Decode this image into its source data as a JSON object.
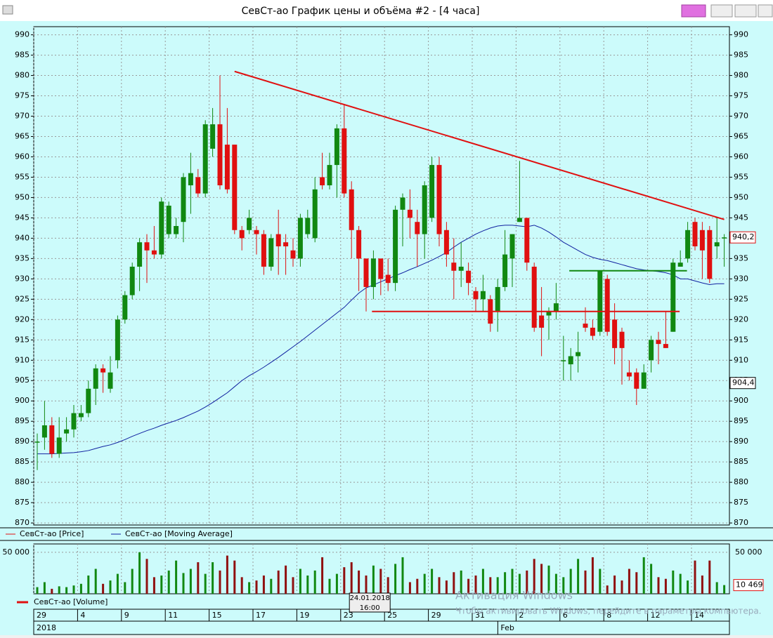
{
  "chart_data": {
    "type": "candlestick",
    "title": "СевСт-ао График цены и объёма #2 - [4 часа]",
    "colors": {
      "up": "#118811",
      "down": "#e01010",
      "ma": "#1020a0",
      "background": "#ccfbfb"
    },
    "open": [
      890,
      891,
      894,
      887,
      892,
      893,
      896,
      897,
      903,
      908,
      903,
      910,
      920,
      926,
      933,
      939,
      937,
      936,
      941,
      941,
      944,
      953,
      955,
      951,
      962,
      968,
      963,
      963,
      942,
      942,
      942,
      941,
      933,
      941,
      939,
      937,
      935,
      941,
      940,
      955,
      953,
      958,
      967,
      952,
      942,
      935,
      928,
      935,
      931,
      929,
      947,
      947,
      944,
      941,
      945,
      958,
      942,
      934,
      932,
      932,
      927,
      925,
      925,
      922,
      928,
      935,
      944,
      945,
      933,
      921,
      921,
      922,
      910,
      909,
      911,
      919,
      918,
      917,
      930,
      920,
      917,
      907,
      907,
      903,
      910,
      915,
      914,
      917,
      933,
      935,
      944,
      942,
      942,
      938,
      940
    ],
    "high": [
      892,
      900,
      896,
      896,
      896,
      899,
      899,
      905,
      909,
      909,
      911,
      921,
      927,
      934,
      940,
      941,
      943,
      950,
      949,
      945,
      956,
      961,
      957,
      969,
      972,
      980,
      972,
      963,
      943,
      947,
      943,
      942,
      941,
      947,
      941,
      940,
      946,
      947,
      955,
      961,
      961,
      968,
      973,
      954,
      943,
      935,
      937,
      935,
      935,
      948,
      951,
      952,
      947,
      954,
      960,
      960,
      944,
      940,
      939,
      934,
      928,
      931,
      926,
      930,
      942,
      941,
      959,
      945,
      934,
      928,
      923,
      929,
      916,
      913,
      917,
      923,
      920,
      932,
      931,
      924,
      918,
      910,
      908,
      909,
      916,
      917,
      922,
      935,
      937,
      944,
      945,
      944,
      943,
      945,
      941
    ],
    "low": [
      883,
      888,
      886,
      886,
      890,
      891,
      895,
      896,
      899,
      902,
      902,
      908,
      919,
      925,
      927,
      929,
      935,
      935,
      940,
      940,
      939,
      946,
      950,
      950,
      960,
      952,
      951,
      941,
      937,
      941,
      936,
      931,
      932,
      931,
      931,
      933,
      933,
      940,
      939,
      952,
      952,
      950,
      950,
      935,
      927,
      922,
      925,
      926,
      927,
      927,
      938,
      940,
      933,
      935,
      944,
      938,
      933,
      925,
      928,
      926,
      922,
      922,
      917,
      917,
      927,
      928,
      944,
      932,
      917,
      911,
      915,
      920,
      905,
      905,
      907,
      917,
      915,
      916,
      916,
      909,
      904,
      905,
      899,
      903,
      907,
      909,
      913,
      917,
      933,
      934,
      937,
      930,
      929,
      935,
      933
    ],
    "close": [
      890,
      894,
      887,
      891,
      893,
      897,
      897,
      903,
      908,
      907,
      907,
      920,
      926,
      933,
      939,
      937,
      936,
      949,
      948,
      943,
      955,
      956,
      951,
      968,
      968,
      953,
      952,
      942,
      940,
      945,
      941,
      933,
      940,
      938,
      938,
      935,
      945,
      945,
      952,
      953,
      958,
      967,
      951,
      942,
      935,
      928,
      935,
      930,
      929,
      947,
      950,
      945,
      941,
      953,
      958,
      941,
      936,
      932,
      933,
      929,
      925,
      927,
      919,
      928,
      936,
      941,
      945,
      934,
      918,
      918,
      922,
      924,
      910,
      911,
      912,
      918,
      916,
      932,
      917,
      913,
      913,
      906,
      903,
      907,
      915,
      914,
      913,
      934,
      934,
      942,
      938,
      937,
      930,
      939,
      940.2
    ],
    "ma": [
      887,
      887,
      887,
      887.1,
      887.2,
      887.3,
      887.5,
      887.8,
      888.3,
      888.8,
      889.2,
      889.8,
      890.5,
      891.3,
      892,
      892.7,
      893.3,
      894,
      894.6,
      895.2,
      895.9,
      896.7,
      897.5,
      898.5,
      899.6,
      900.8,
      902,
      903.5,
      905,
      906.2,
      907.2,
      908.3,
      909.5,
      910.7,
      912,
      913.3,
      914.6,
      916,
      917.4,
      918.8,
      920.2,
      921.6,
      923,
      924.8,
      926.5,
      927.8,
      928.5,
      929.3,
      930,
      930.8,
      931.5,
      932.3,
      933,
      933.8,
      934.6,
      935.5,
      936.5,
      937.8,
      939,
      940,
      941,
      941.8,
      942.5,
      943,
      943.2,
      943.2,
      943,
      942.8,
      943.2,
      942.5,
      941.5,
      940.3,
      939,
      938,
      937,
      936,
      935.3,
      934.8,
      934.5,
      934,
      933.5,
      933,
      932.5,
      932.2,
      932,
      931.8,
      931.5,
      931,
      930,
      930,
      929.5,
      929,
      928.6,
      928.8,
      928.8
    ],
    "volume": [
      8000,
      14000,
      6000,
      9000,
      8000,
      10000,
      12000,
      22000,
      30000,
      12000,
      16000,
      24000,
      14000,
      30000,
      50000,
      42000,
      20000,
      22000,
      28000,
      40000,
      25000,
      30000,
      38000,
      24000,
      38000,
      28000,
      46000,
      40000,
      20000,
      14000,
      16000,
      22000,
      18000,
      28000,
      34000,
      20000,
      30000,
      22000,
      28000,
      44000,
      18000,
      24000,
      32000,
      38000,
      28000,
      22000,
      34000,
      30000,
      20000,
      36000,
      44000,
      14000,
      18000,
      24000,
      30000,
      20000,
      16000,
      26000,
      28000,
      18000,
      22000,
      30000,
      20000,
      20000,
      26000,
      30000,
      24000,
      28000,
      42000,
      36000,
      34000,
      24000,
      20000,
      30000,
      42000,
      28000,
      44000,
      30000,
      10000,
      22000,
      16000,
      30000,
      26000,
      44000,
      36000,
      20000,
      18000,
      28000,
      24000,
      16000,
      40000,
      22000,
      40000,
      14000,
      10469
    ],
    "ylim": [
      869.5,
      992
    ],
    "yticks": [
      870,
      875,
      880,
      885,
      890,
      895,
      900,
      905,
      910,
      915,
      920,
      925,
      930,
      935,
      940,
      945,
      950,
      955,
      960,
      965,
      970,
      975,
      980,
      985,
      990
    ],
    "volume_ylim": [
      0,
      60000
    ],
    "volume_yticks": [
      {
        "value": 50000,
        "label": "50 000"
      }
    ],
    "last_labels": [
      {
        "value": 940.2,
        "label": "940,2"
      },
      {
        "value": 904.4,
        "label": "904,4"
      }
    ],
    "volume_last_label": {
      "value": 10469,
      "label": "10 469"
    },
    "xticks": [
      {
        "value": 0,
        "label": "29"
      },
      {
        "value": 6,
        "label": "4"
      },
      {
        "value": 12,
        "label": "9"
      },
      {
        "value": 18,
        "label": "11"
      },
      {
        "value": 24,
        "label": "15"
      },
      {
        "value": 30,
        "label": "17"
      },
      {
        "value": 36,
        "label": "19"
      },
      {
        "value": 42,
        "label": "23"
      },
      {
        "value": 48,
        "label": "25"
      },
      {
        "value": 54,
        "label": "29"
      },
      {
        "value": 60,
        "label": "31"
      },
      {
        "value": 66,
        "label": "2"
      },
      {
        "value": 72,
        "label": "6"
      },
      {
        "value": 78,
        "label": "8"
      },
      {
        "value": 84,
        "label": "12"
      },
      {
        "value": 90,
        "label": "14"
      }
    ],
    "xticks_upper": [
      {
        "value": 0,
        "label": "2018"
      },
      {
        "value": 63.5,
        "label": "Feb"
      }
    ],
    "crosshair": {
      "value": 45.5,
      "label": "24.01.2018",
      "label2": "16:00"
    },
    "lines": [
      {
        "color": "#e01010",
        "x": [
          27,
          94
        ],
        "y": [
          981,
          944.6
        ]
      },
      {
        "color": "#e01010",
        "x": [
          45.8,
          87.9
        ],
        "y": [
          922,
          922
        ]
      },
      {
        "color": "#118811",
        "x": [
          72.8,
          88.9
        ],
        "y": [
          932,
          932
        ]
      }
    ],
    "legend": [
      "СевСт-ао [Price]",
      "СевСт-ао [Moving Average]"
    ],
    "volume_legend": "СевСт-ао [Volume]",
    "watermark": [
      "Активация Windows",
      "Чтобы активировать Windows, перейдите в параметры компьютера."
    ]
  }
}
